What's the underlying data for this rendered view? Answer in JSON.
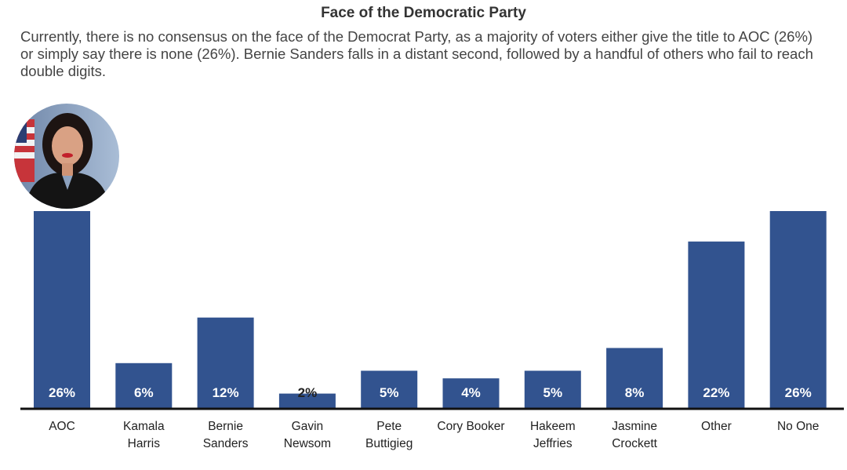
{
  "colors": {
    "bar": "#32538f",
    "bar_label_light": "#ffffff",
    "bar_label_dark": "#222222",
    "axis": "#111111"
  },
  "chart_data": {
    "type": "bar",
    "title": "Face of the Democratic Party",
    "subtitle": "Currently, there is no consensus on the face of the Democrat Party, as a majority of voters either give the title to AOC (26%) or simply say there is none (26%). Bernie Sanders falls in a distant second, followed by a handful of others who fail to reach double digits.",
    "categories": [
      [
        "AOC"
      ],
      [
        "Kamala",
        "Harris"
      ],
      [
        "Bernie",
        "Sanders"
      ],
      [
        "Gavin",
        "Newsom"
      ],
      [
        "Pete",
        "Buttigieg"
      ],
      [
        "Cory Booker"
      ],
      [
        "Hakeem",
        "Jeffries"
      ],
      [
        "Jasmine",
        "Crockett"
      ],
      [
        "Other"
      ],
      [
        "No One"
      ]
    ],
    "values": [
      26,
      6,
      12,
      2,
      5,
      4,
      5,
      8,
      22,
      26
    ],
    "data_labels": [
      "26%",
      "6%",
      "12%",
      "2%",
      "5%",
      "4%",
      "5%",
      "8%",
      "22%",
      "26%"
    ],
    "ylim": [
      0,
      26
    ],
    "grid": false,
    "legend": "none",
    "xlabel": "",
    "ylabel": ""
  },
  "portrait": {
    "icon": "person-portrait-icon"
  }
}
